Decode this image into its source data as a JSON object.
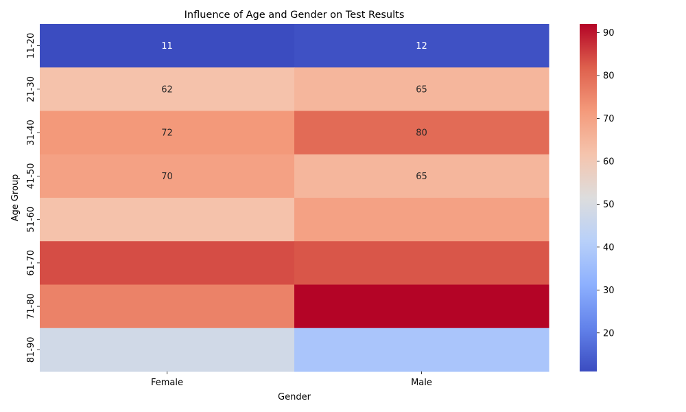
{
  "chart_data": {
    "type": "heatmap",
    "title": "Influence of Age and Gender on Test Results",
    "xlabel": "Gender",
    "ylabel": "Age Group",
    "x_categories": [
      "Female",
      "Male"
    ],
    "y_categories": [
      "11-20",
      "21-30",
      "31-40",
      "41-50",
      "51-60",
      "61-70",
      "71-80",
      "81-90"
    ],
    "values": [
      [
        11,
        12
      ],
      [
        62,
        65
      ],
      [
        72,
        80
      ],
      [
        70,
        65
      ],
      [
        62,
        70
      ],
      [
        84,
        83
      ],
      [
        76,
        92
      ],
      [
        48,
        38
      ]
    ],
    "annotations": [
      [
        "11",
        "12"
      ],
      [
        "62",
        "65"
      ],
      [
        "72",
        "80"
      ],
      [
        "70",
        "65"
      ],
      [
        "",
        ""
      ],
      [
        "",
        ""
      ],
      [
        "",
        ""
      ],
      [
        "",
        ""
      ]
    ],
    "colormap": "coolwarm",
    "vmin": 11,
    "vmax": 92,
    "colorbar_ticks": [
      "20",
      "30",
      "40",
      "50",
      "60",
      "70",
      "80",
      "90"
    ]
  }
}
